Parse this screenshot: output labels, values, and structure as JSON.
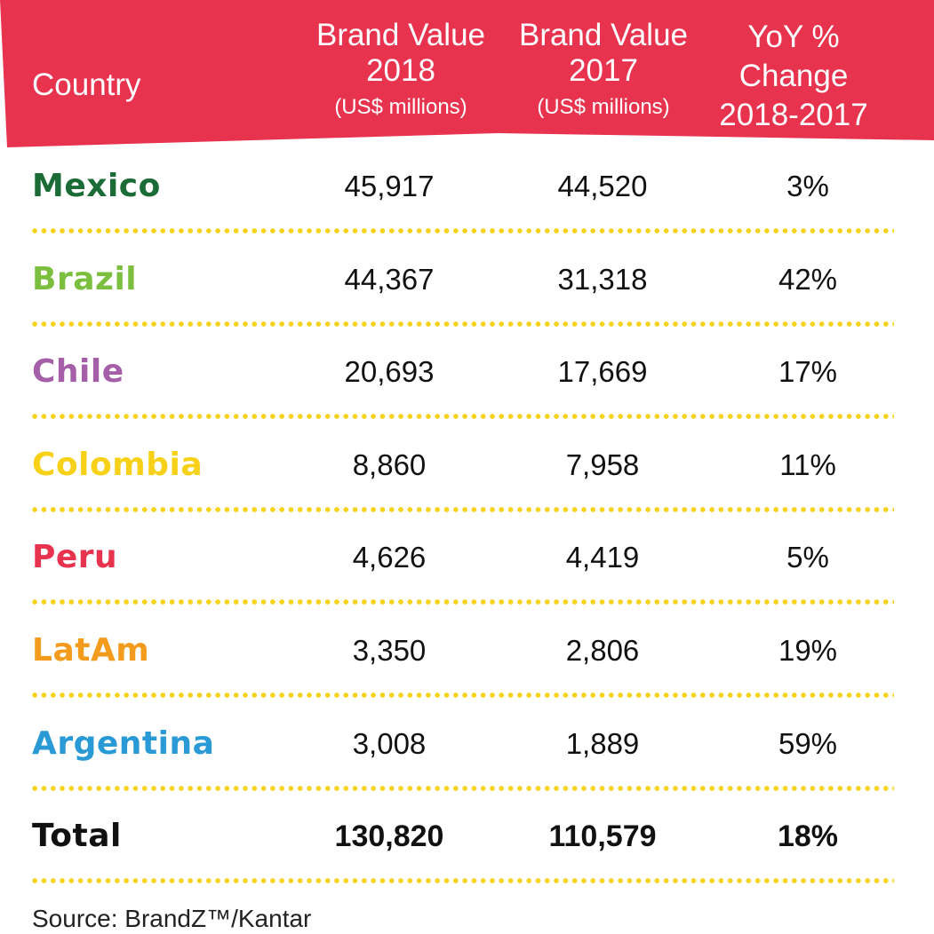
{
  "colors": {
    "header_bg": "#e8334f",
    "dot_separator": "#f6d21b"
  },
  "header": {
    "country": "Country",
    "bv2018": "Brand Value",
    "bv2018_year": "2018",
    "bv2018_unit": "(US$ millions)",
    "bv2017": "Brand Value",
    "bv2017_year": "2017",
    "bv2017_unit": "(US$ millions)",
    "yoy_1": "YoY %",
    "yoy_2": "Change",
    "yoy_3": "2018-2017"
  },
  "source": "Source: BrandZ™/Kantar",
  "chart_data": {
    "type": "table",
    "columns": [
      "Country",
      "Brand Value 2018 (US$ millions)",
      "Brand Value 2017 (US$ millions)",
      "YoY % Change 2018-2017"
    ],
    "rows": [
      {
        "country": "Mexico",
        "color": "#1a6b35",
        "bv2018": "45,917",
        "bv2017": "44,520",
        "yoy": "3%"
      },
      {
        "country": "Brazil",
        "color": "#7cbf3f",
        "bv2018": "44,367",
        "bv2017": "31,318",
        "yoy": "42%"
      },
      {
        "country": "Chile",
        "color": "#a55fa8",
        "bv2018": "20,693",
        "bv2017": "17,669",
        "yoy": "17%"
      },
      {
        "country": "Colombia",
        "color": "#f7d117",
        "bv2018": "8,860",
        "bv2017": "7,958",
        "yoy": "11%"
      },
      {
        "country": "Peru",
        "color": "#e8334f",
        "bv2018": "4,626",
        "bv2017": "4,419",
        "yoy": "5%"
      },
      {
        "country": "LatAm",
        "color": "#f39b1d",
        "bv2018": "3,350",
        "bv2017": "2,806",
        "yoy": "19%"
      },
      {
        "country": "Argentina",
        "color": "#2a9ad6",
        "bv2018": "3,008",
        "bv2017": "1,889",
        "yoy": "59%"
      }
    ],
    "total": {
      "country": "Total",
      "bv2018": "130,820",
      "bv2017": "110,579",
      "yoy": "18%"
    }
  }
}
